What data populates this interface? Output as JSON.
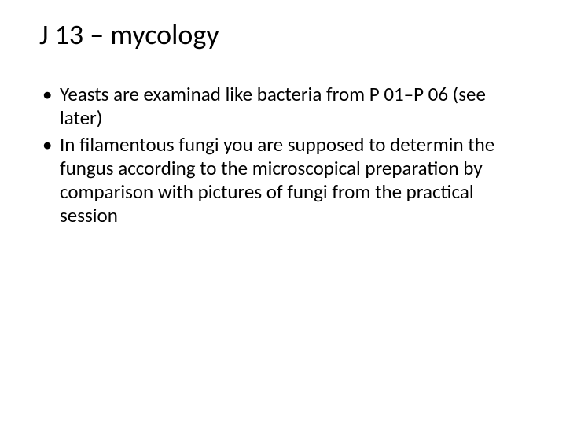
{
  "slide": {
    "title": "J 13 – mycology",
    "bullets": [
      "Yeasts are examinad like bacteria from P 01–P 06 (see later)",
      "In filamentous fungi you are supposed to determin the fungus according to the microscopical preparation by comparison with pictures of fungi from the practical session"
    ],
    "title_fontsize": 36,
    "body_fontsize": 25,
    "text_color": "#000000",
    "background_color": "#ffffff",
    "font_family": "Calibri"
  }
}
